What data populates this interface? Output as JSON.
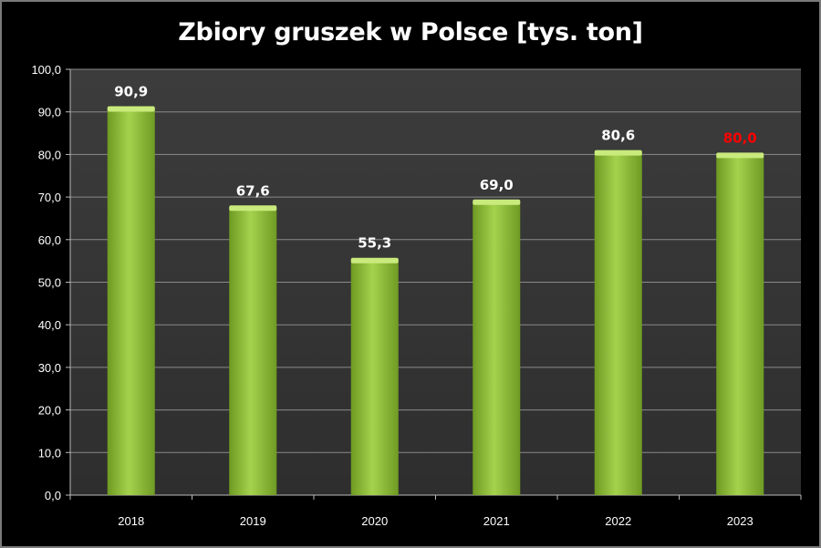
{
  "chart_data": {
    "type": "bar",
    "title": "Zbiory gruszek w Polsce [tys. ton]",
    "categories": [
      "2018",
      "2019",
      "2020",
      "2021",
      "2022",
      "2023"
    ],
    "values": [
      90.9,
      67.6,
      55.3,
      69.0,
      80.6,
      80.0
    ],
    "value_labels": [
      "90,9",
      "67,6",
      "55,3",
      "69,0",
      "80,6",
      "80,0"
    ],
    "value_label_colors": [
      "#ffffff",
      "#ffffff",
      "#ffffff",
      "#ffffff",
      "#ffffff",
      "#ff0000"
    ],
    "y_ticks": [
      "0,0",
      "10,0",
      "20,0",
      "30,0",
      "40,0",
      "50,0",
      "60,0",
      "70,0",
      "80,0",
      "90,0",
      "100,0"
    ],
    "ylim": [
      0,
      100
    ],
    "grid": true,
    "legend": "none",
    "colors": {
      "background": "#000000",
      "plot_area": "#3a3a3a",
      "bar": "#8fc13c",
      "bar_top": "#c9ea7c",
      "gridline": "#8a8a8a"
    }
  }
}
